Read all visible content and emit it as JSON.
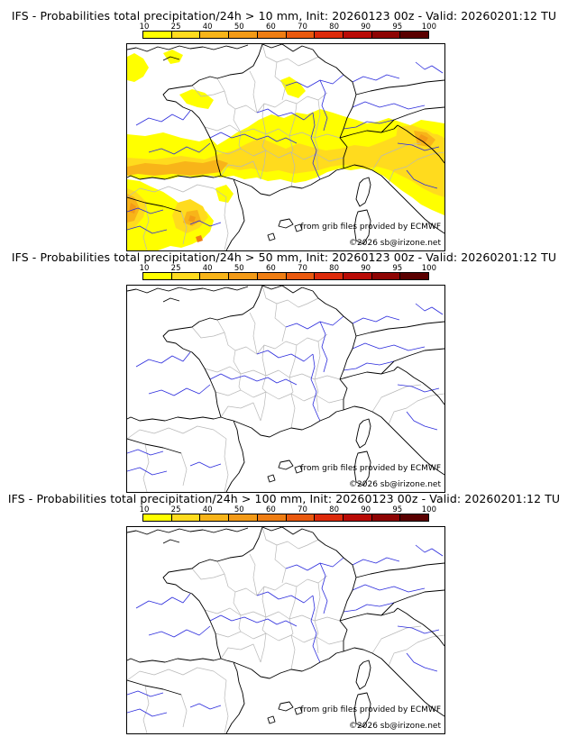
{
  "scale": {
    "ticks": [
      "10",
      "25",
      "40",
      "50",
      "60",
      "70",
      "80",
      "90",
      "95",
      "100"
    ],
    "colors": [
      "#ffff00",
      "#ffdb1e",
      "#f8b419",
      "#f39a16",
      "#ef7d12",
      "#ea590e",
      "#dd2a0a",
      "#b90b06",
      "#8e0403",
      "#5a0000"
    ]
  },
  "panels": [
    {
      "title": "IFS - Probabilities total precipitation/24h > 10 mm, Init: 20260123 00z - Valid: 20260201:12 TU",
      "credit_source": "from grib files provided by ECMWF",
      "credit_site": "©2026 sb@irizone.net",
      "has_precip": true
    },
    {
      "title": "IFS - Probabilities total precipitation/24h > 50 mm, Init: 20260123 00z - Valid: 20260201:12 TU",
      "credit_source": "from grib files provided by ECMWF",
      "credit_site": "©2026 sb@irizone.net",
      "has_precip": false
    },
    {
      "title": "IFS - Probabilities total precipitation/24h > 100 mm, Init: 20260123 00z - Valid: 20260201:12 TU",
      "credit_source": "from grib files provided by ECMWF",
      "credit_site": "©2026 sb@irizone.net",
      "has_precip": false
    }
  ],
  "map_colors": {
    "coast": "#000000",
    "border": "#000000",
    "regions": "#b8b8b8",
    "rivers": "#2b2bdc"
  }
}
